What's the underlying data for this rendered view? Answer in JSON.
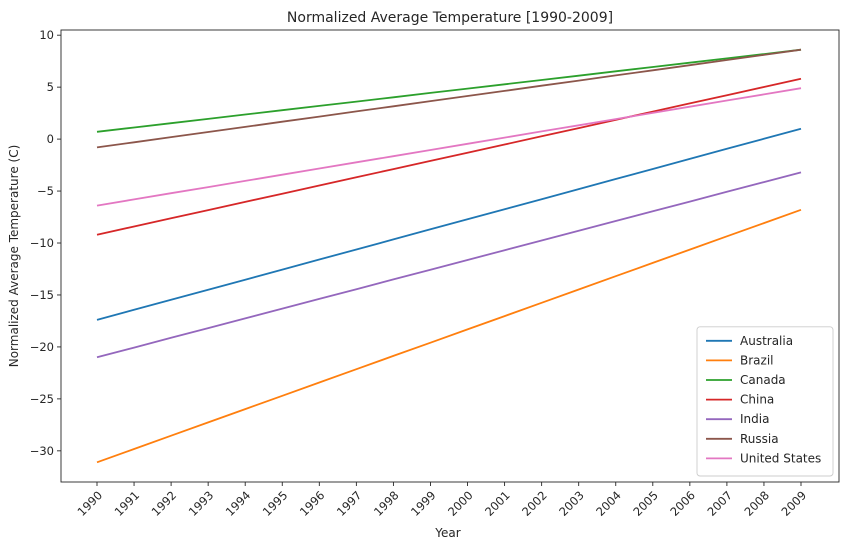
{
  "chart_data": {
    "type": "line",
    "title": "Normalized Average Temperature [1990-2009]",
    "xlabel": "Year",
    "ylabel": "Normalized Average Temperature (C)",
    "x": [
      "1990",
      "1991",
      "1992",
      "1993",
      "1994",
      "1995",
      "1996",
      "1997",
      "1998",
      "1999",
      "2000",
      "2001",
      "2002",
      "2003",
      "2004",
      "2005",
      "2006",
      "2007",
      "2008",
      "2009"
    ],
    "ylim": [
      -33,
      10.5
    ],
    "yticks": [
      10,
      5,
      0,
      -5,
      -10,
      -15,
      -20,
      -25,
      -30
    ],
    "ytick_labels": [
      "10",
      "5",
      "0",
      "−5",
      "−10",
      "−15",
      "−20",
      "−25",
      "−30"
    ],
    "grid": false,
    "legend_position": "lower-right",
    "series": [
      {
        "name": "Australia",
        "color": "#1f77b4",
        "start": -17.4,
        "end": 1.0
      },
      {
        "name": "Brazil",
        "color": "#ff7f0e",
        "start": -31.1,
        "end": -6.8
      },
      {
        "name": "Canada",
        "color": "#2ca02c",
        "start": 0.7,
        "end": 8.6
      },
      {
        "name": "China",
        "color": "#d62728",
        "start": -9.2,
        "end": 5.8
      },
      {
        "name": "India",
        "color": "#9467bd",
        "start": -21.0,
        "end": -3.2
      },
      {
        "name": "Russia",
        "color": "#8c564b",
        "start": -0.8,
        "end": 8.6
      },
      {
        "name": "United States",
        "color": "#e377c2",
        "start": -6.4,
        "end": 4.9
      }
    ]
  }
}
